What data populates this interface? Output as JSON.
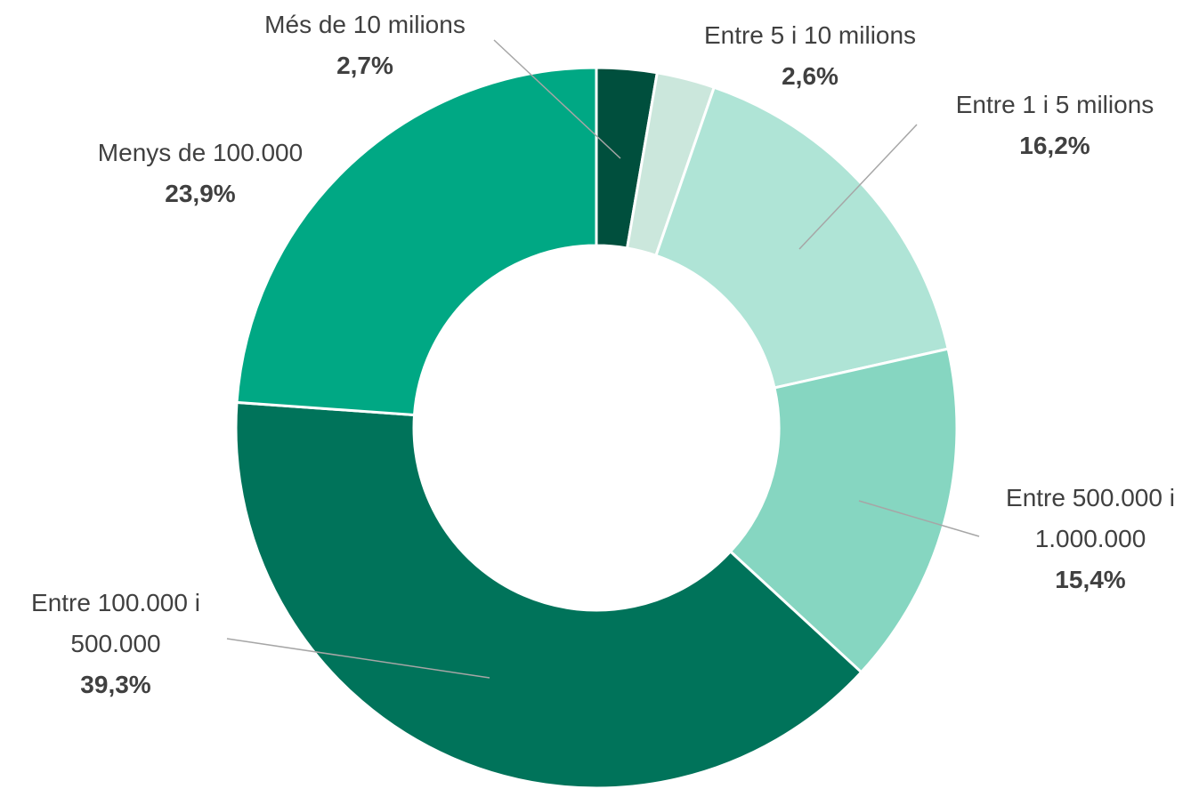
{
  "chart_data": {
    "type": "donut",
    "categories": [
      "Més de 10 milions",
      "Entre 5 i 10 milions",
      "Entre 1 i 5 milions",
      "Entre 500.000 i 1.000.000",
      "Entre 100.000 i 500.000",
      "Menys de 100.000"
    ],
    "values": [
      2.7,
      2.6,
      16.2,
      15.4,
      39.3,
      23.9
    ],
    "value_labels": [
      "2,7%",
      "2,6%",
      "16,2%",
      "15,4%",
      "39,3%",
      "23,9%"
    ],
    "colors": [
      "#004f3d",
      "#cbe7dc",
      "#afe4d6",
      "#86d6c1",
      "#00735a",
      "#00a884"
    ]
  }
}
